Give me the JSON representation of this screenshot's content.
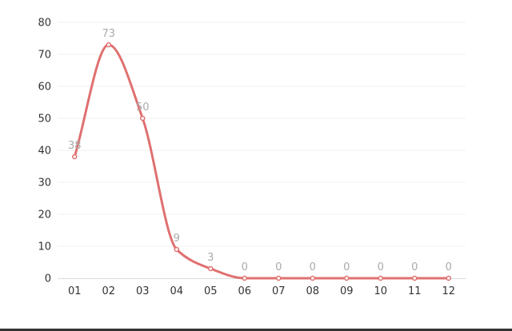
{
  "chart_data": {
    "type": "line",
    "categories": [
      "01",
      "02",
      "03",
      "04",
      "05",
      "06",
      "07",
      "08",
      "09",
      "10",
      "11",
      "12"
    ],
    "values": [
      38,
      73,
      50,
      9,
      3,
      0,
      0,
      0,
      0,
      0,
      0,
      0
    ],
    "yticks": [
      "0",
      "10",
      "20",
      "30",
      "40",
      "50",
      "60",
      "70",
      "80"
    ],
    "ylim": [
      0,
      80
    ],
    "smooth": true,
    "grid": true,
    "data_labels": true,
    "line_color": "#e07070",
    "marker_fill": "#ffffff",
    "label_color": "#aaaaaa",
    "grid_color": "#f2f2f2"
  }
}
